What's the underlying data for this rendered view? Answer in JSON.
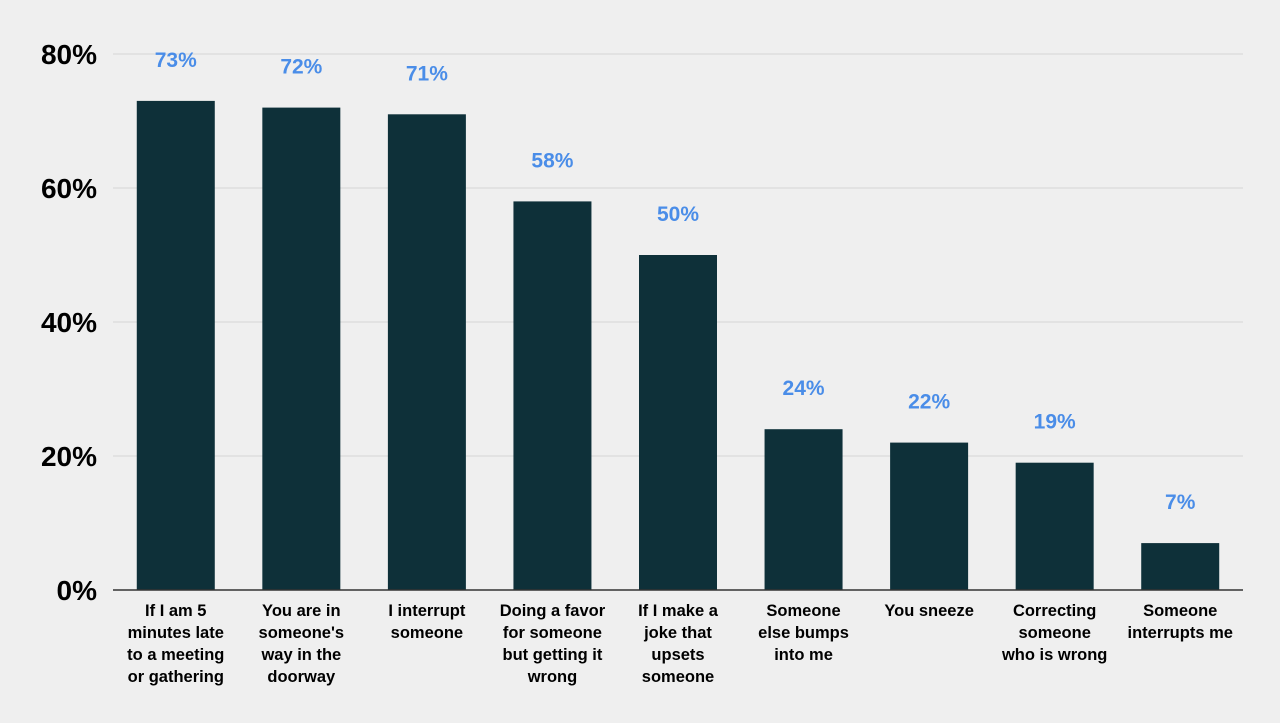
{
  "chart_data": {
    "type": "bar",
    "title": "",
    "xlabel": "",
    "ylabel": "",
    "ylim": [
      0,
      80
    ],
    "y_ticks": [
      "0%",
      "20%",
      "40%",
      "60%",
      "80%"
    ],
    "y_tick_values": [
      0,
      20,
      40,
      60,
      80
    ],
    "grid": true,
    "categories": [
      [
        "If I am 5",
        "minutes late",
        "to a meeting",
        "or gathering"
      ],
      [
        "You are in",
        "someone's",
        "way in the",
        "doorway"
      ],
      [
        "I interrupt",
        "someone"
      ],
      [
        "Doing a favor",
        "for someone",
        "but getting it",
        "wrong"
      ],
      [
        "If I make a",
        "joke that",
        "upsets",
        "someone"
      ],
      [
        "Someone",
        "else bumps",
        "into me"
      ],
      [
        "You sneeze"
      ],
      [
        "Correcting",
        "someone",
        "who is wrong"
      ],
      [
        "Someone",
        "interrupts me"
      ]
    ],
    "values": [
      73,
      72,
      71,
      58,
      50,
      24,
      22,
      19,
      7
    ],
    "value_labels": [
      "73%",
      "72%",
      "71%",
      "58%",
      "50%",
      "24%",
      "22%",
      "19%",
      "7%"
    ],
    "colors": {
      "bar": "#0e3039",
      "value_label": "#4a8de8",
      "grid": "#d4d4d4",
      "axis": "#333333",
      "background": "#efefef"
    }
  }
}
